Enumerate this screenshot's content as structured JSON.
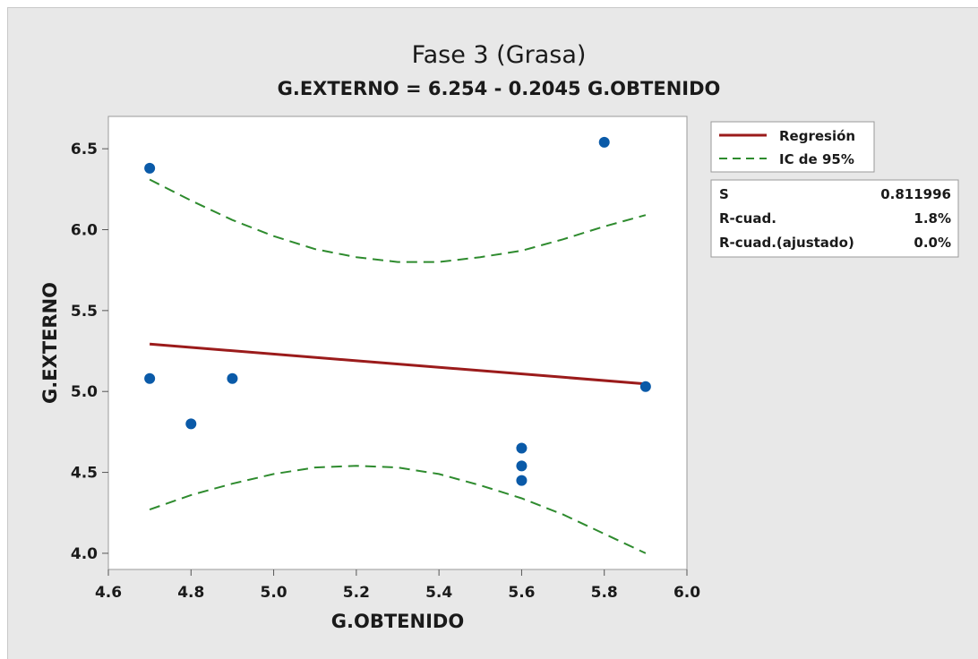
{
  "chart_data": {
    "type": "scatter",
    "title": "Fase 3 (Grasa)",
    "subtitle": "G.EXTERNO = 6.254 - 0.2045 G.OBTENIDO",
    "xlabel": "G.OBTENIDO",
    "ylabel": "G.EXTERNO",
    "xlim": [
      4.6,
      6.0
    ],
    "ylim": [
      3.9,
      6.7
    ],
    "xticks": [
      "4.6",
      "4.8",
      "5.0",
      "5.2",
      "5.4",
      "5.6",
      "5.8",
      "6.0"
    ],
    "yticks": [
      "4.0",
      "4.5",
      "5.0",
      "5.5",
      "6.0",
      "6.5"
    ],
    "points": {
      "x": [
        4.7,
        4.7,
        4.8,
        4.9,
        5.6,
        5.6,
        5.6,
        5.8,
        5.9
      ],
      "y": [
        6.38,
        5.08,
        4.8,
        5.08,
        4.65,
        4.54,
        4.45,
        6.54,
        5.03
      ]
    },
    "series": [
      {
        "name": "Regresión",
        "color": "#9b1b1b",
        "style": "solid",
        "x": [
          4.7,
          5.2,
          5.7,
          5.9
        ],
        "y": [
          5.293,
          5.19,
          5.088,
          5.047
        ]
      },
      {
        "name": "IC de 95%",
        "color": "#2e8b2e",
        "style": "dashed",
        "x": [
          4.7,
          4.8,
          4.9,
          5.0,
          5.1,
          5.2,
          5.3,
          5.4,
          5.5,
          5.6,
          5.7,
          5.8,
          5.9
        ],
        "y": [
          6.31,
          6.18,
          6.06,
          5.96,
          5.88,
          5.83,
          5.8,
          5.8,
          5.83,
          5.87,
          5.94,
          6.02,
          6.09
        ]
      },
      {
        "name": "",
        "color": "#2e8b2e",
        "style": "dashed",
        "x": [
          4.7,
          4.8,
          4.9,
          5.0,
          5.1,
          5.2,
          5.3,
          5.4,
          5.5,
          5.6,
          5.7,
          5.8,
          5.9
        ],
        "y": [
          4.27,
          4.36,
          4.43,
          4.49,
          4.53,
          4.54,
          4.53,
          4.49,
          4.42,
          4.34,
          4.24,
          4.12,
          4.0
        ]
      }
    ],
    "marker_color": "#0a5aa8",
    "legend": {
      "position": "right",
      "entries": [
        {
          "label": "Regresión",
          "color": "#9b1b1b",
          "style": "solid"
        },
        {
          "label": "IC de 95%",
          "color": "#2e8b2e",
          "style": "dashed"
        }
      ]
    },
    "stats": [
      {
        "label": "S",
        "value": "0.811996"
      },
      {
        "label": "R-cuad.",
        "value": "1.8%"
      },
      {
        "label": "R-cuad.(ajustado)",
        "value": "0.0%"
      }
    ],
    "grid": false
  }
}
